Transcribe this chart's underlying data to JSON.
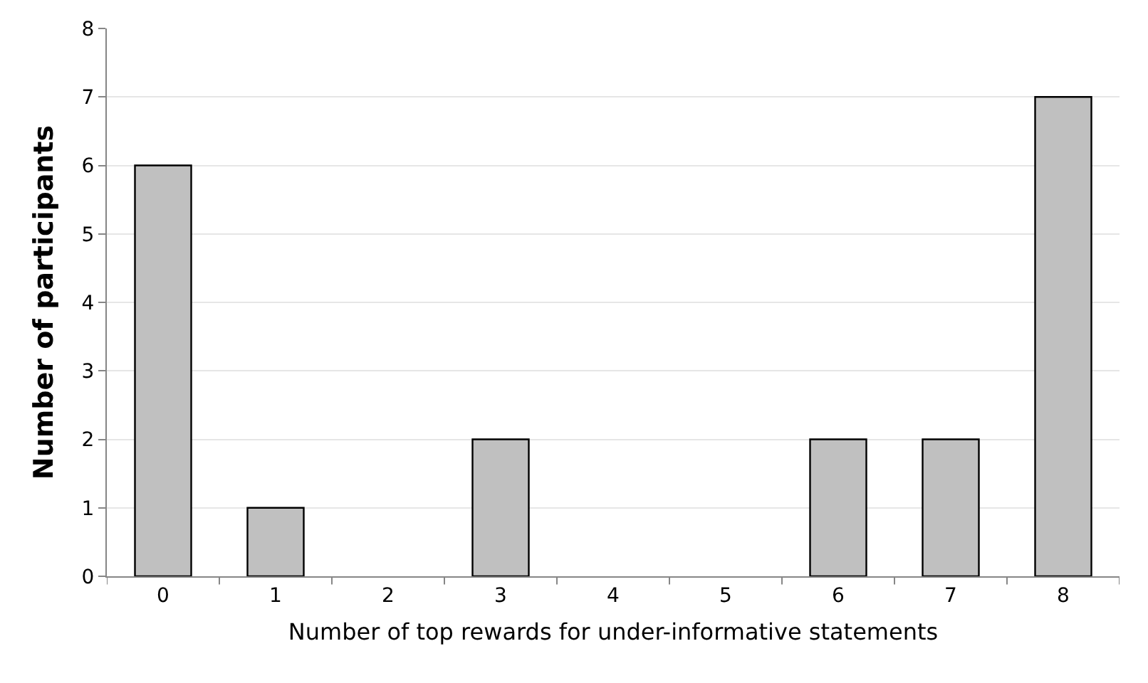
{
  "chart_data": {
    "type": "bar",
    "xlabel": "Number of top rewards for under-informative statements",
    "ylabel": "Number of participants",
    "categories": [
      "0",
      "1",
      "2",
      "3",
      "4",
      "5",
      "6",
      "7",
      "8"
    ],
    "values": [
      6,
      1,
      0,
      2,
      0,
      0,
      2,
      2,
      7
    ],
    "color": "#c0c0c0",
    "ylim": [
      0,
      8
    ],
    "yticks": [
      0,
      1,
      2,
      3,
      4,
      5,
      6,
      7,
      8
    ],
    "grid": "y"
  }
}
